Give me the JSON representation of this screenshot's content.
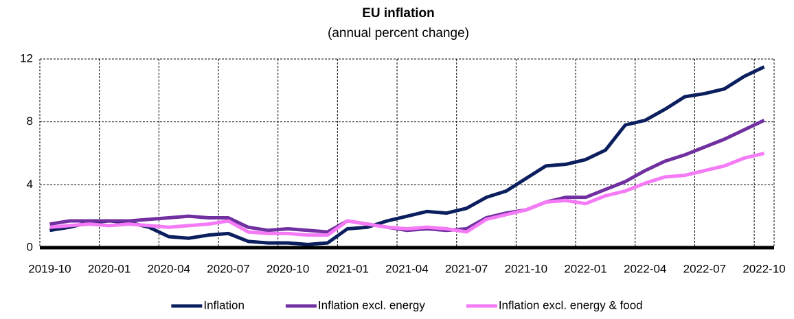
{
  "chart_data": {
    "type": "line",
    "title": "EU inflation",
    "subtitle": "(annual percent change)",
    "categories": [
      "2019-10",
      null,
      null,
      "2020-01",
      null,
      null,
      "2020-04",
      null,
      null,
      "2020-07",
      null,
      null,
      "2020-10",
      null,
      null,
      "2021-01",
      null,
      null,
      "2021-04",
      null,
      null,
      "2021-07",
      null,
      null,
      "2021-10",
      null,
      null,
      "2022-01",
      null,
      null,
      "2022-04",
      null,
      null,
      "2022-07",
      null,
      null,
      "2022-10"
    ],
    "series": [
      {
        "name": "Inflation",
        "color": "#0b1f5e",
        "values": [
          1.1,
          1.3,
          1.6,
          1.7,
          1.6,
          1.3,
          0.7,
          0.6,
          0.8,
          0.9,
          0.4,
          0.3,
          0.3,
          0.2,
          0.3,
          1.2,
          1.3,
          1.7,
          2.0,
          2.3,
          2.2,
          2.5,
          3.2,
          3.6,
          4.4,
          5.2,
          5.3,
          5.6,
          6.2,
          7.8,
          8.1,
          8.8,
          9.6,
          9.8,
          10.1,
          10.9,
          11.5
        ]
      },
      {
        "name": "Inflation excl. energy",
        "color": "#7030a0",
        "values": [
          1.5,
          1.7,
          1.7,
          1.7,
          1.7,
          1.8,
          1.9,
          2.0,
          1.9,
          1.9,
          1.3,
          1.1,
          1.2,
          1.1,
          1.0,
          1.7,
          1.5,
          1.3,
          1.1,
          1.2,
          1.1,
          1.2,
          1.9,
          2.2,
          2.4,
          2.9,
          3.2,
          3.2,
          3.7,
          4.2,
          4.9,
          5.5,
          5.9,
          6.4,
          6.9,
          7.5,
          8.1
        ]
      },
      {
        "name": "Inflation excl. energy & food",
        "color": "#f57af5",
        "values": [
          1.3,
          1.4,
          1.5,
          1.4,
          1.5,
          1.4,
          1.3,
          1.4,
          1.5,
          1.7,
          1.0,
          0.9,
          0.9,
          0.8,
          0.8,
          1.7,
          1.5,
          1.3,
          1.2,
          1.3,
          1.2,
          1.0,
          1.8,
          2.1,
          2.4,
          2.9,
          3.0,
          2.8,
          3.3,
          3.6,
          4.1,
          4.5,
          4.6,
          4.9,
          5.2,
          5.7,
          6.0
        ]
      }
    ],
    "ylim": [
      0,
      12
    ],
    "yticks": [
      0,
      4,
      8,
      12
    ],
    "grid": true,
    "legend": "bottom"
  }
}
